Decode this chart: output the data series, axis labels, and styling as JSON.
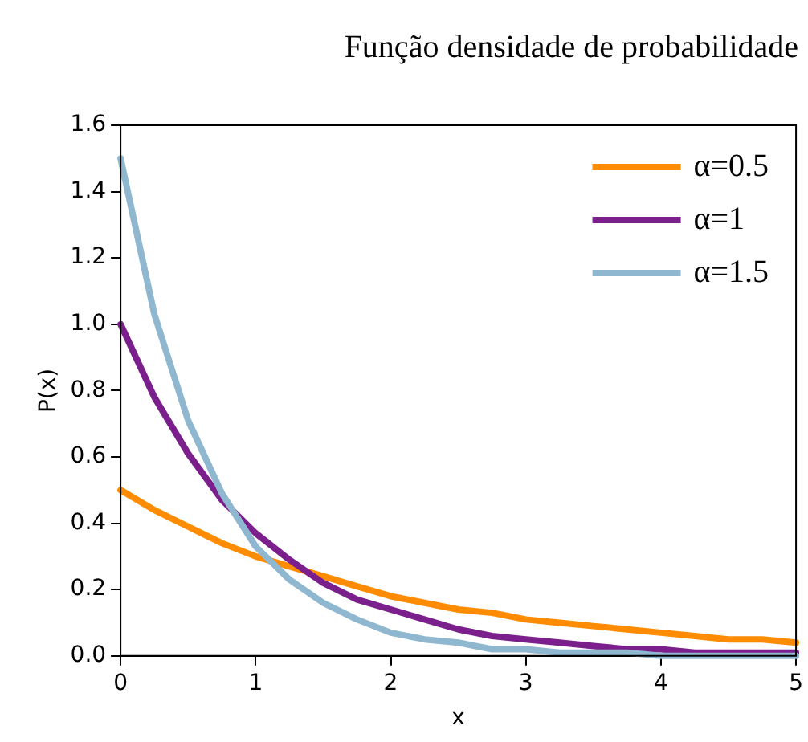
{
  "chart_data": {
    "type": "line",
    "title": "Função densidade de probabilidade",
    "xlabel": "x",
    "ylabel": "P(x)",
    "x": [
      0,
      0.25,
      0.5,
      0.75,
      1,
      1.25,
      1.5,
      1.75,
      2,
      2.25,
      2.5,
      2.75,
      3,
      3.25,
      3.5,
      3.75,
      4,
      4.25,
      4.5,
      4.75,
      5
    ],
    "series": [
      {
        "name": "α=0.5",
        "color": "#ff8c00",
        "values": [
          0.5,
          0.44,
          0.39,
          0.34,
          0.3,
          0.27,
          0.24,
          0.21,
          0.18,
          0.16,
          0.14,
          0.13,
          0.11,
          0.1,
          0.09,
          0.08,
          0.07,
          0.06,
          0.05,
          0.05,
          0.04
        ]
      },
      {
        "name": "α=1",
        "color": "#7b1f8c",
        "values": [
          1,
          0.78,
          0.61,
          0.47,
          0.37,
          0.29,
          0.22,
          0.17,
          0.14,
          0.11,
          0.08,
          0.06,
          0.05,
          0.04,
          0.03,
          0.02,
          0.02,
          0.01,
          0.01,
          0.01,
          0.01
        ]
      },
      {
        "name": "α=1.5",
        "color": "#8fb8d0",
        "values": [
          1.5,
          1.03,
          0.71,
          0.49,
          0.33,
          0.23,
          0.16,
          0.11,
          0.07,
          0.05,
          0.04,
          0.02,
          0.02,
          0.01,
          0.01,
          0.01,
          0,
          0,
          0,
          0,
          0
        ]
      }
    ],
    "xlim": [
      0,
      5
    ],
    "xticks": [
      0,
      1,
      2,
      3,
      4,
      5
    ],
    "ylim": [
      0,
      1.6
    ],
    "yticks": [
      {
        "value": 0,
        "label": "0.0"
      },
      {
        "value": 0.2,
        "label": "0.2"
      },
      {
        "value": 0.4,
        "label": "0.4"
      },
      {
        "value": 0.6,
        "label": "0.6"
      },
      {
        "value": 0.8,
        "label": "0.8"
      },
      {
        "value": 1,
        "label": "1.0"
      },
      {
        "value": 1.2,
        "label": "1.2"
      },
      {
        "value": 1.4,
        "label": "1.4"
      },
      {
        "value": 1.6,
        "label": "1.6"
      }
    ],
    "grid": false,
    "legend": "top right",
    "marker": "none",
    "line_style": "solid"
  }
}
